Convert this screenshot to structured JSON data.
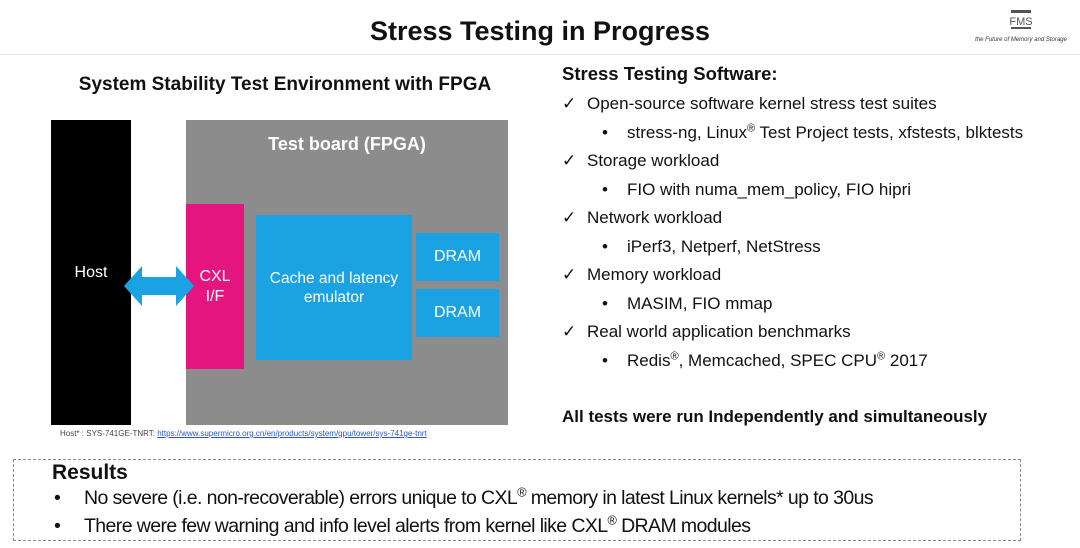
{
  "header": {
    "title": "Stress Testing in Progress",
    "logo_text": "FMS",
    "logo_tagline": "the Future of Memory and Storage"
  },
  "diagram": {
    "title": "System Stability Test Environment with FPGA",
    "host_label": "Host",
    "board_label": "Test board (FPGA)",
    "cxl_label_line1": "CXL",
    "cxl_label_line2": "I/F",
    "cache_label_line1": "Cache and latency",
    "cache_label_line2": "emulator",
    "dram_label": "DRAM",
    "footnote_prefix": "Host* : SYS-741GE-TNRT: ",
    "footnote_link": "https://www.supermicro.org.cn/en/products/system/gpu/tower/sys-741ge-tnrt",
    "colors": {
      "host": "#000000",
      "board": "#8c8c8c",
      "cxl": "#e5157f",
      "emulator": "#1aa2e2",
      "arrow": "#1aa2e2"
    }
  },
  "software": {
    "title": "Stress Testing Software:",
    "check_mark": "✓",
    "bullet": "•",
    "registered": "®",
    "items": {
      "kernel": "Open-source software kernel stress test suites",
      "kernel_sub_a": "stress-ng, Linux",
      "kernel_sub_b": " Test Project tests, xfstests, blktests",
      "storage": "Storage workload",
      "storage_sub": "FIO with numa_mem_policy, FIO hipri",
      "network": "Network workload",
      "network_sub": "iPerf3, Netperf, NetStress",
      "memory": "Memory workload",
      "memory_sub": "MASIM, FIO mmap",
      "realworld": "Real world application benchmarks",
      "realworld_sub_a": "Redis",
      "realworld_sub_b": ", Memcached, SPEC CPU",
      "realworld_sub_c": " 2017"
    },
    "summary": "All tests were run Independently and simultaneously"
  },
  "results": {
    "title": "Results",
    "bullet": "•",
    "registered": "®",
    "item1_a": "No severe (i.e. non-recoverable) errors unique to CXL",
    "item1_b": " memory in latest Linux kernels* up to 30us",
    "item2_a": "There were few warning and info level alerts from kernel like CXL",
    "item2_b": " DRAM modules"
  }
}
